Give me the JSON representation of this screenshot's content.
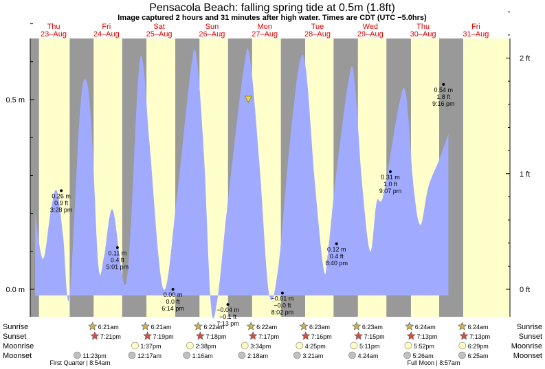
{
  "title": "Pensacola Beach: falling  spring tide at 0.5m (1.8ft)",
  "subtitle": "Image captured 2 hours and 31 minutes after high water. Times are CDT (UTC −5.0hrs)",
  "colors": {
    "day": "#ffffcc",
    "night": "#999999",
    "tide": "#a0aaff",
    "day_label": "#e00000",
    "sun_star": "#c8b44a",
    "sunset_star": "#e04a3a",
    "moonrise": "#ffffc0",
    "moonset": "#c0c0c0"
  },
  "days": [
    {
      "dow": "Thu",
      "date": "23–Aug"
    },
    {
      "dow": "Fri",
      "date": "24–Aug"
    },
    {
      "dow": "Sat",
      "date": "25–Aug"
    },
    {
      "dow": "Sun",
      "date": "26–Aug"
    },
    {
      "dow": "Mon",
      "date": "27–Aug"
    },
    {
      "dow": "Tue",
      "date": "28–Aug"
    },
    {
      "dow": "Wed",
      "date": "29–Aug"
    },
    {
      "dow": "Thu",
      "date": "30–Aug"
    },
    {
      "dow": "Fri",
      "date": "31–Aug"
    }
  ],
  "axes": {
    "left_ticks": [
      {
        "label": "0.5 m",
        "value": 0.5
      },
      {
        "label": "0.0 m",
        "value": 0.0
      }
    ],
    "right_ticks": [
      {
        "label": "2 ft",
        "value_m": 0.6096
      },
      {
        "label": "1 ft",
        "value_m": 0.3048
      },
      {
        "label": "0 ft",
        "value_m": 0.0
      }
    ]
  },
  "chart_data": {
    "type": "area",
    "title": "Pensacola Beach: falling  spring tide at 0.5m (1.8ft)",
    "x_unit": "days from 23-Aug 00:00 CDT",
    "y_unit": "m",
    "ylim": [
      -0.07,
      0.8
    ],
    "xlim": [
      -0.5,
      8.75
    ],
    "series": [
      {
        "name": "",
        "points": [
          [
            0.15,
            0.2
          ],
          [
            0.3,
            0.08
          ],
          [
            0.45,
            0.21
          ],
          [
            0.56,
            0.26
          ],
          [
            0.68,
            0.14
          ],
          [
            0.8,
            -0.02
          ],
          [
            1.0,
            0.47
          ],
          [
            1.12,
            0.55
          ],
          [
            1.22,
            0.42
          ],
          [
            1.35,
            0.06
          ],
          [
            1.46,
            0.09
          ],
          [
            1.62,
            0.21
          ],
          [
            1.88,
            0.02
          ],
          [
            2.1,
            0.55
          ],
          [
            2.2,
            0.59
          ],
          [
            2.32,
            0.38
          ],
          [
            2.58,
            0.0
          ],
          [
            2.84,
            0.25
          ],
          [
            3.1,
            0.58
          ],
          [
            3.21,
            0.61
          ],
          [
            3.35,
            0.35
          ],
          [
            3.48,
            -0.04
          ],
          [
            3.6,
            -0.03
          ],
          [
            3.8,
            0.23
          ],
          [
            4.1,
            0.58
          ],
          [
            4.22,
            0.61
          ],
          [
            4.4,
            0.33
          ],
          [
            4.58,
            -0.01
          ],
          [
            4.75,
            0.05
          ],
          [
            4.95,
            0.35
          ],
          [
            5.15,
            0.59
          ],
          [
            5.28,
            0.58
          ],
          [
            5.45,
            0.28
          ],
          [
            5.62,
            0.05
          ],
          [
            5.7,
            0.1
          ],
          [
            5.85,
            0.3
          ],
          [
            6.1,
            0.56
          ],
          [
            6.2,
            0.55
          ],
          [
            6.35,
            0.27
          ],
          [
            6.5,
            0.1
          ],
          [
            6.62,
            0.23
          ],
          [
            6.75,
            0.25
          ],
          [
            7.05,
            0.49
          ],
          [
            7.18,
            0.51
          ],
          [
            7.32,
            0.27
          ],
          [
            7.45,
            0.17
          ],
          [
            7.6,
            0.27
          ],
          [
            7.8,
            0.34
          ],
          [
            7.98,
            0.41
          ]
        ]
      }
    ],
    "annotations": [
      {
        "m": "0.26 m",
        "ft": "0.9 ft",
        "time": "3:28 pm",
        "x": 0.645,
        "y": 0.26,
        "pos": "below"
      },
      {
        "m": "0.11 m",
        "ft": "0.4 ft",
        "time": "5:01 pm",
        "x": 1.709,
        "y": 0.11,
        "pos": "below"
      },
      {
        "m": "0.00 m",
        "ft": "0.0 ft",
        "time": "6:14 pm",
        "x": 2.76,
        "y": 0.0,
        "pos": "below"
      },
      {
        "m": "−0.04 m",
        "ft": "−0.1 ft",
        "time": "7:13 pm",
        "x": 3.801,
        "y": -0.04,
        "pos": "below"
      },
      {
        "m": "−0.01 m",
        "ft": "−0.0 ft",
        "time": "8:02 pm",
        "x": 4.835,
        "y": -0.01,
        "pos": "below"
      },
      {
        "m": "0.12 m",
        "ft": "0.4 ft",
        "time": "8:40 pm",
        "x": 5.861,
        "y": 0.12,
        "pos": "below"
      },
      {
        "m": "0.31 m",
        "ft": "1.0 ft",
        "time": "9:07 pm",
        "x": 6.88,
        "y": 0.31,
        "pos": "below"
      },
      {
        "m": "0.54 m",
        "ft": "1.8 ft",
        "time": "9:16 pm",
        "x": 7.886,
        "y": 0.54,
        "pos": "below"
      }
    ],
    "current_marker": {
      "x": 4.19,
      "y": 0.5
    },
    "night_intervals": [
      [
        -0.5,
        0.223
      ],
      [
        0.805,
        1.258
      ],
      [
        1.799,
        2.259
      ],
      [
        2.805,
        3.264
      ],
      [
        3.804,
        4.26
      ],
      [
        4.806,
        5.266
      ],
      [
        5.804,
        6.265
      ],
      [
        6.805,
        7.27
      ],
      [
        7.805,
        8.26
      ]
    ]
  },
  "rows": {
    "labels": [
      "Sunrise",
      "Sunset",
      "Moonrise",
      "Moonset"
    ],
    "sunrise": [
      {
        "x": 1.264,
        "text": "6:21am"
      },
      {
        "x": 2.264,
        "text": "6:21am"
      },
      {
        "x": 3.265,
        "text": "6:22am"
      },
      {
        "x": 4.265,
        "text": "6:22am"
      },
      {
        "x": 5.266,
        "text": "6:23am"
      },
      {
        "x": 6.266,
        "text": "6:23am"
      },
      {
        "x": 7.267,
        "text": "6:24am"
      },
      {
        "x": 8.267,
        "text": "6:24am"
      }
    ],
    "sunset": [
      {
        "x": 1.306,
        "text": "7:21pm"
      },
      {
        "x": 2.305,
        "text": "7:19pm"
      },
      {
        "x": 3.304,
        "text": "7:18pm"
      },
      {
        "x": 4.303,
        "text": "7:17pm"
      },
      {
        "x": 5.302,
        "text": "7:16pm"
      },
      {
        "x": 6.302,
        "text": "7:15pm"
      },
      {
        "x": 7.301,
        "text": "7:13pm"
      },
      {
        "x": 8.301,
        "text": "7:13pm"
      }
    ],
    "moonrise": [
      {
        "x": 2.068,
        "text": "1:37pm"
      },
      {
        "x": 3.11,
        "text": "2:38pm"
      },
      {
        "x": 4.149,
        "text": "3:34pm"
      },
      {
        "x": 5.184,
        "text": "4:25pm"
      },
      {
        "x": 6.216,
        "text": "5:11pm"
      },
      {
        "x": 7.244,
        "text": "5:52pm"
      },
      {
        "x": 8.27,
        "text": "6:29pm"
      }
    ],
    "moonset": [
      {
        "x": 0.974,
        "text": "11:23pm"
      },
      {
        "x": 2.011,
        "text": "12:17am"
      },
      {
        "x": 3.048,
        "text": "1:16am"
      },
      {
        "x": 4.093,
        "text": "2:18am"
      },
      {
        "x": 5.14,
        "text": "3:21am"
      },
      {
        "x": 6.184,
        "text": "4:24am"
      },
      {
        "x": 7.226,
        "text": "5:26am"
      },
      {
        "x": 8.267,
        "text": "6:25am"
      }
    ],
    "moon_phases": [
      {
        "text": "First Quarter | 8:54am",
        "x": 1.0
      },
      {
        "text": "Full Moon | 8:57am",
        "x": 7.7
      }
    ]
  }
}
